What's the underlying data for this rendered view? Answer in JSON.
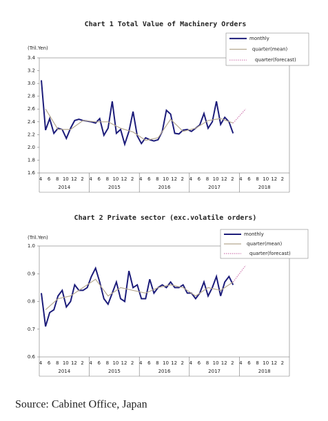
{
  "chart_data": [
    {
      "type": "line",
      "title": "Chart 1 Total Value of Machinery Orders",
      "y_label": "(Tril.Yen)",
      "categories": [
        "4",
        null,
        "6",
        null,
        "8",
        null,
        "10",
        null,
        "12",
        null,
        "2",
        null,
        "4",
        null,
        "6",
        null,
        "8",
        null,
        "10",
        null,
        "12",
        null,
        "2",
        null,
        "4",
        null,
        "6",
        null,
        "8",
        null,
        "10",
        null,
        "12",
        null,
        "2",
        null,
        "4",
        null,
        "6",
        null,
        "8",
        null,
        "10",
        null,
        "12",
        null,
        "2",
        null,
        "4",
        null,
        "6",
        null,
        "8",
        null,
        "10",
        null,
        "12",
        null,
        "2",
        null
      ],
      "year_labels": [
        "2014",
        "2015",
        "2016",
        "2017",
        "2018"
      ],
      "ylim": [
        1.6,
        3.4
      ],
      "yticks": [
        1.6,
        1.8,
        {
          "value": 2,
          "label": "2.0"
        },
        2.2,
        2.4,
        2.6,
        2.8,
        {
          "value": 3,
          "label": "3.0"
        },
        3.2,
        3.4
      ],
      "series": [
        {
          "name": "monthly",
          "color": "#1c1c7a",
          "style": "solid",
          "values": [
            3.05,
            2.27,
            2.45,
            2.22,
            2.3,
            2.28,
            2.14,
            2.3,
            2.42,
            2.44,
            2.42,
            2.41,
            2.4,
            2.38,
            2.45,
            2.19,
            2.3,
            2.72,
            2.22,
            2.28,
            2.05,
            2.25,
            2.56,
            2.18,
            2.06,
            2.15,
            2.12,
            2.1,
            2.12,
            2.25,
            2.58,
            2.52,
            2.22,
            2.21,
            2.27,
            2.28,
            2.25,
            2.3,
            2.35,
            2.53,
            2.3,
            2.4,
            2.72,
            2.36,
            2.47,
            2.4,
            2.22,
            null,
            null,
            null,
            null,
            null,
            null,
            null,
            null,
            null,
            null,
            null,
            null,
            null
          ]
        },
        {
          "name": "quarter(mean)",
          "color": "#b5a88f",
          "style": "solid",
          "x": [
            1,
            4,
            7,
            10,
            13,
            16,
            19,
            22,
            25,
            28,
            31,
            34,
            37,
            40,
            43,
            46
          ],
          "values": [
            2.6,
            2.28,
            2.28,
            2.42,
            2.4,
            2.4,
            2.3,
            2.24,
            2.11,
            2.15,
            2.44,
            2.25,
            2.3,
            2.42,
            2.45,
            2.38
          ]
        },
        {
          "name": "quarter(forecast)",
          "color": "#d07ab0",
          "style": "dotted",
          "x": [
            46,
            49
          ],
          "values": [
            2.38,
            2.6
          ]
        }
      ]
    },
    {
      "type": "line",
      "title": "Chart 2 Private sector (exc.volatile orders)",
      "y_label": "(Tril.Yen)",
      "categories": [
        "4",
        null,
        "6",
        null,
        "8",
        null,
        "10",
        null,
        "12",
        null,
        "2",
        null,
        "4",
        null,
        "6",
        null,
        "8",
        null,
        "10",
        null,
        "12",
        null,
        "2",
        null,
        "4",
        null,
        "6",
        null,
        "8",
        null,
        "10",
        null,
        "12",
        null,
        "2",
        null,
        "4",
        null,
        "6",
        null,
        "8",
        null,
        "10",
        null,
        "12",
        null,
        "2",
        null,
        "4",
        null,
        "6",
        null,
        "8",
        null,
        "10",
        null,
        "12",
        null,
        "2",
        null
      ],
      "year_labels": [
        "2014",
        "2015",
        "2016",
        "2017",
        "2018"
      ],
      "ylim": [
        0.6,
        1.0
      ],
      "yticks": [
        0.6,
        0.7,
        0.8,
        0.9,
        {
          "value": 1,
          "label": "1.0"
        }
      ],
      "series": [
        {
          "name": "monthly",
          "color": "#1c1c7a",
          "style": "solid",
          "values": [
            0.83,
            0.71,
            0.76,
            0.77,
            0.82,
            0.84,
            0.78,
            0.8,
            0.86,
            0.84,
            0.84,
            0.85,
            0.89,
            0.92,
            0.87,
            0.81,
            0.79,
            0.83,
            0.87,
            0.81,
            0.8,
            0.91,
            0.85,
            0.86,
            0.81,
            0.81,
            0.88,
            0.83,
            0.85,
            0.86,
            0.85,
            0.87,
            0.85,
            0.85,
            0.86,
            0.83,
            0.83,
            0.81,
            0.83,
            0.87,
            0.82,
            0.85,
            0.89,
            0.82,
            0.87,
            0.89,
            0.86,
            null,
            null,
            null,
            null,
            null,
            null,
            null,
            null,
            null,
            null,
            null,
            null,
            null
          ]
        },
        {
          "name": "quarter(mean)",
          "color": "#b5a88f",
          "style": "solid",
          "x": [
            1,
            4,
            7,
            10,
            13,
            16,
            19,
            22,
            25,
            28,
            31,
            34,
            37,
            40,
            43,
            46
          ],
          "values": [
            0.77,
            0.81,
            0.82,
            0.85,
            0.88,
            0.82,
            0.85,
            0.84,
            0.83,
            0.85,
            0.86,
            0.85,
            0.82,
            0.85,
            0.84,
            0.87
          ]
        },
        {
          "name": "quarter(forecast)",
          "color": "#d07ab0",
          "style": "dotted",
          "x": [
            46,
            49
          ],
          "values": [
            0.87,
            0.93
          ]
        }
      ]
    }
  ],
  "source": "Source: Cabinet Office, Japan"
}
